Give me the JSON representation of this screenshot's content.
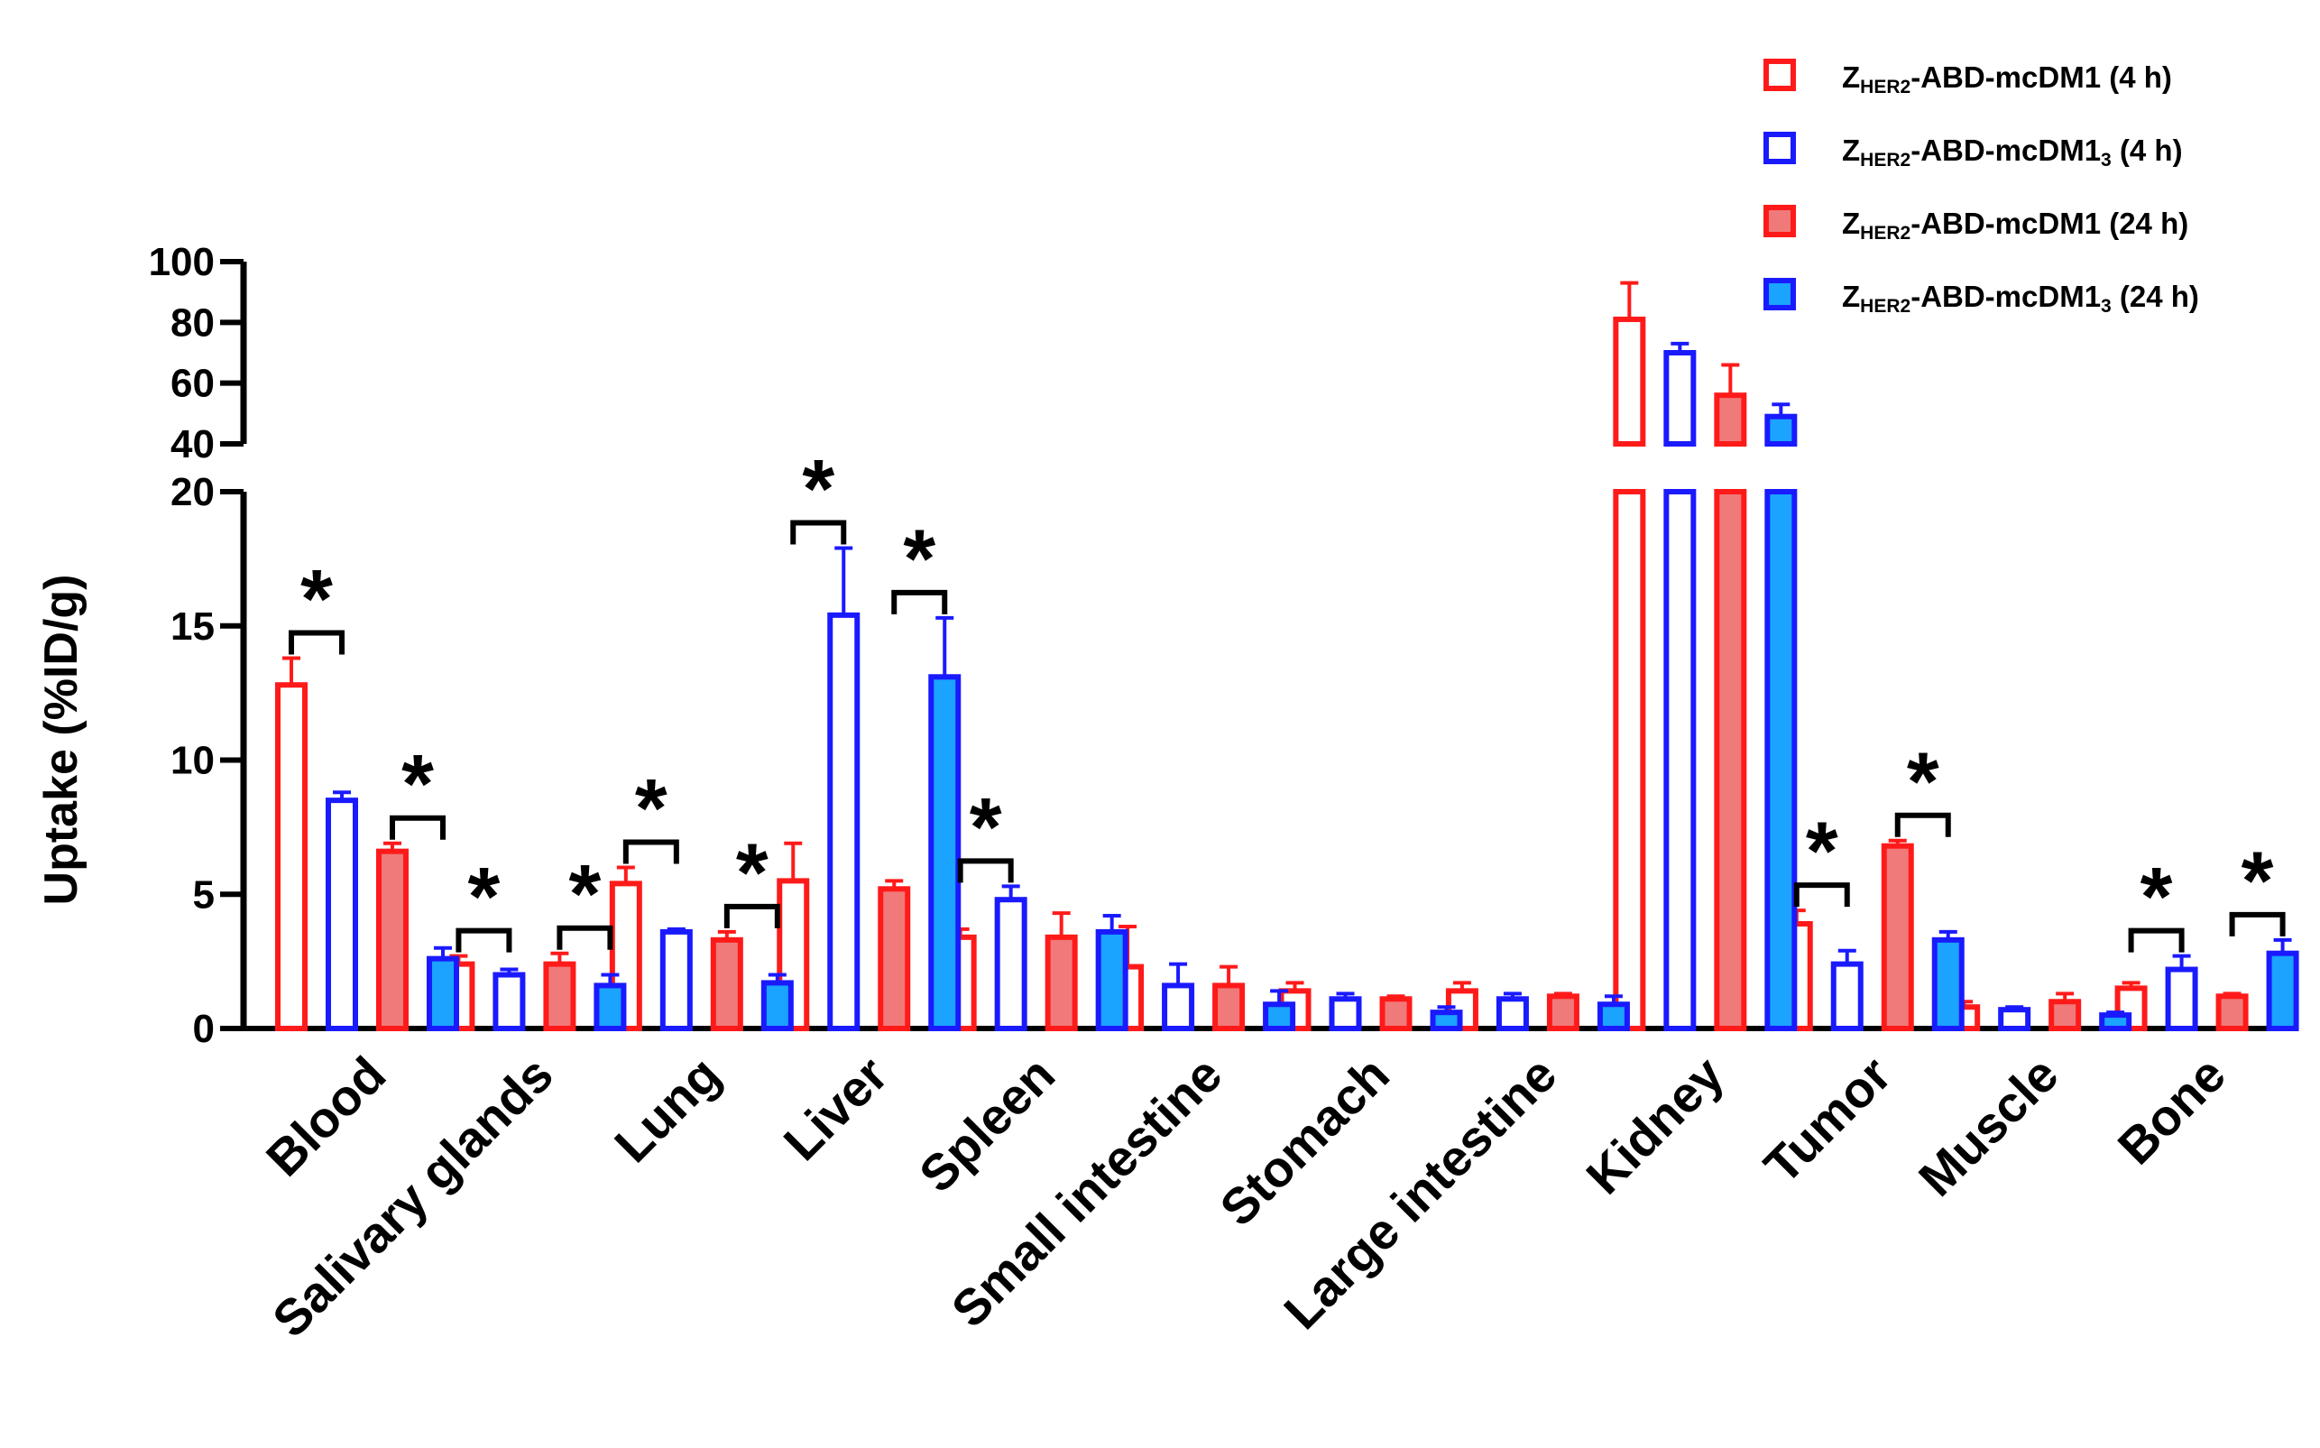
{
  "chart_data": {
    "type": "bar",
    "title": "",
    "xlabel": "",
    "ylabel": "Uptake (%ID/g)",
    "broken_axis": {
      "lower_range": [
        0,
        20
      ],
      "upper_range": [
        40,
        100
      ],
      "lower_ticks": [
        "0",
        "5",
        "10",
        "15",
        "20"
      ],
      "upper_ticks": [
        "40",
        "60",
        "80",
        "100"
      ]
    },
    "categories": [
      "Blood",
      "Salivary glands",
      "Lung",
      "Liver",
      "Spleen",
      "Small intestine",
      "Stomach",
      "Large intestine",
      "Kidney",
      "Tumor",
      "Muscle",
      "Bone"
    ],
    "series": [
      {
        "name": "ZHER2-ABD-mcDM1 (4 h)",
        "legend_parts": [
          "Z",
          "HER2",
          "-ABD-mcDM1 (4 h)",
          ""
        ],
        "style": "open",
        "color": "#ff1a1a",
        "values": [
          12.8,
          2.4,
          5.4,
          5.5,
          3.4,
          2.3,
          1.4,
          1.4,
          81,
          3.9,
          0.8,
          1.5
        ],
        "errors": [
          1.0,
          0.3,
          0.6,
          1.4,
          0.3,
          1.5,
          0.3,
          0.3,
          12,
          0.5,
          0.2,
          0.2
        ]
      },
      {
        "name": "ZHER2-ABD-mcDM13 (4 h)",
        "legend_parts": [
          "Z",
          "HER2",
          "-ABD-mcDM1",
          "3",
          " (4 h)"
        ],
        "style": "open",
        "color": "#1a1aff",
        "values": [
          8.5,
          2.0,
          3.6,
          15.4,
          4.8,
          1.6,
          1.1,
          1.1,
          70,
          2.4,
          0.7,
          2.2
        ],
        "errors": [
          0.3,
          0.2,
          0.1,
          2.5,
          0.5,
          0.8,
          0.2,
          0.2,
          3,
          0.5,
          0.1,
          0.5
        ]
      },
      {
        "name": "ZHER2-ABD-mcDM1 (24 h)",
        "legend_parts": [
          "Z",
          "HER2",
          "-ABD-mcDM1 (24 h)",
          ""
        ],
        "style": "filled",
        "color": "#ff1a1a",
        "fill": "#f07a7a",
        "values": [
          6.6,
          2.4,
          3.3,
          5.2,
          3.4,
          1.6,
          1.1,
          1.2,
          56,
          6.8,
          1.0,
          1.2
        ],
        "errors": [
          0.3,
          0.4,
          0.3,
          0.3,
          0.9,
          0.7,
          0.1,
          0.1,
          10,
          0.2,
          0.3,
          0.1
        ]
      },
      {
        "name": "ZHER2-ABD-mcDM13 (24 h)",
        "legend_parts": [
          "Z",
          "HER2",
          "-ABD-mcDM1",
          "3",
          " (24 h)"
        ],
        "style": "filled",
        "color": "#1a1aff",
        "fill": "#1aa3ff",
        "values": [
          2.6,
          1.6,
          1.7,
          13.1,
          3.6,
          0.9,
          0.6,
          0.9,
          49,
          3.3,
          0.5,
          2.8
        ],
        "errors": [
          0.4,
          0.4,
          0.3,
          2.2,
          0.6,
          0.5,
          0.2,
          0.3,
          4,
          0.3,
          0.1,
          0.5
        ]
      }
    ],
    "significance": [
      {
        "category": "Blood",
        "pair": [
          0,
          1
        ],
        "label": "*"
      },
      {
        "category": "Blood",
        "pair": [
          2,
          3
        ],
        "label": "*"
      },
      {
        "category": "Salivary glands",
        "pair": [
          0,
          1
        ],
        "label": "*"
      },
      {
        "category": "Salivary glands",
        "pair": [
          2,
          3
        ],
        "label": "*"
      },
      {
        "category": "Lung",
        "pair": [
          0,
          1
        ],
        "label": "*"
      },
      {
        "category": "Lung",
        "pair": [
          2,
          3
        ],
        "label": "*"
      },
      {
        "category": "Liver",
        "pair": [
          0,
          1
        ],
        "label": "*"
      },
      {
        "category": "Liver",
        "pair": [
          2,
          3
        ],
        "label": "*"
      },
      {
        "category": "Spleen",
        "pair": [
          0,
          1
        ],
        "label": "*"
      },
      {
        "category": "Tumor",
        "pair": [
          0,
          1
        ],
        "label": "*"
      },
      {
        "category": "Tumor",
        "pair": [
          2,
          3
        ],
        "label": "*"
      },
      {
        "category": "Bone",
        "pair": [
          0,
          1
        ],
        "label": "*"
      },
      {
        "category": "Bone",
        "pair": [
          2,
          3
        ],
        "label": "*"
      }
    ],
    "legend_position": "top-right"
  }
}
